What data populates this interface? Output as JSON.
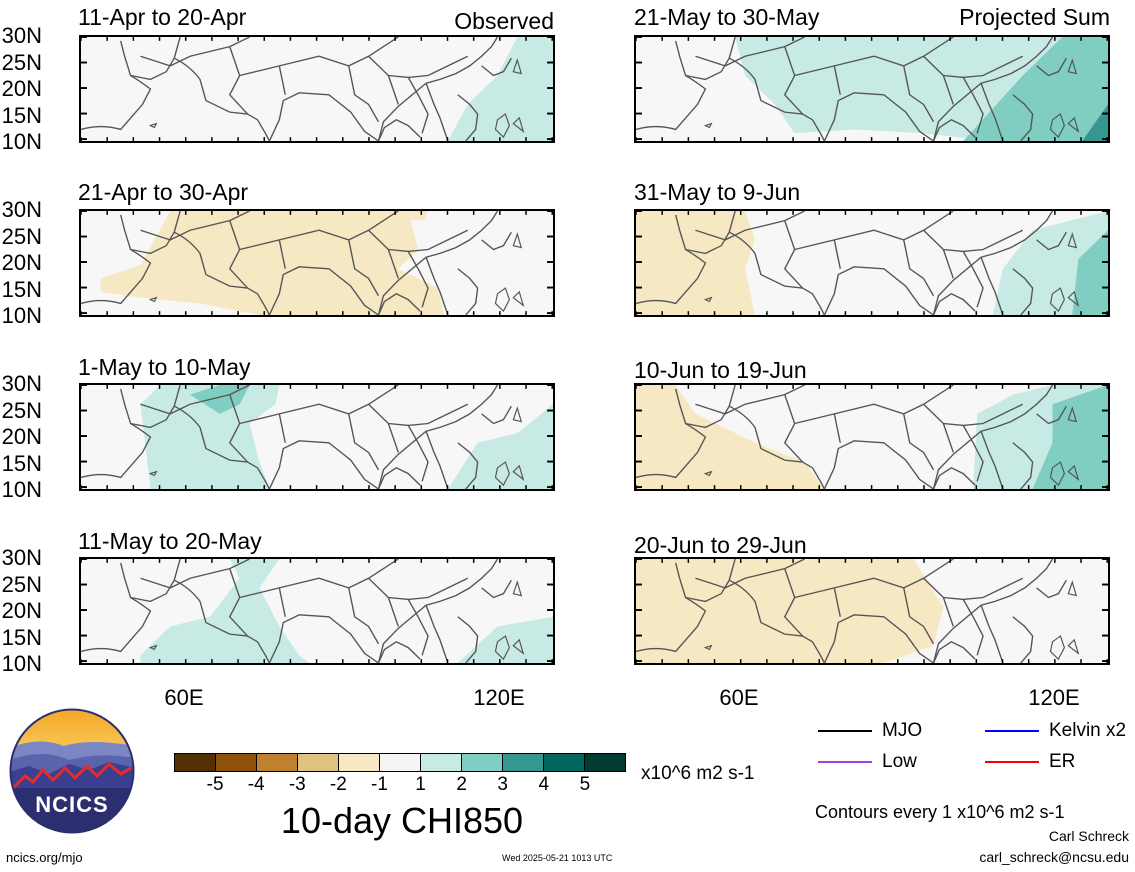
{
  "header": {
    "observed_label": "Observed",
    "projected_label": "Projected Sum"
  },
  "panels_left": [
    {
      "title": "11-Apr to 20-Apr"
    },
    {
      "title": "21-Apr to 30-Apr"
    },
    {
      "title": "1-May to 10-May"
    },
    {
      "title": "11-May to 20-May"
    }
  ],
  "panels_right": [
    {
      "title": "21-May to 30-May"
    },
    {
      "title": "31-May to 9-Jun"
    },
    {
      "title": "10-Jun to 19-Jun"
    },
    {
      "title": "20-Jun to 29-Jun"
    }
  ],
  "lat_labels": [
    "30N",
    "25N",
    "20N",
    "15N",
    "10N"
  ],
  "lon_labels": [
    "60E",
    "120E"
  ],
  "colorbar": {
    "colors": [
      "#543005",
      "#8c510a",
      "#bf812d",
      "#dfc27d",
      "#f6e8c3",
      "#f5f5f5",
      "#c7eae5",
      "#80cdc1",
      "#35978f",
      "#01665e",
      "#003c30"
    ],
    "ticks": [
      "-5",
      "-4",
      "-3",
      "-2",
      "-1",
      "1",
      "2",
      "3",
      "4",
      "5"
    ],
    "unit": "x10^6 m2 s-1",
    "title": "10-day CHI850"
  },
  "legend": {
    "mjo": {
      "label": "MJO",
      "color": "#000000"
    },
    "kelvin": {
      "label": "Kelvin x2",
      "color": "#0000ff"
    },
    "low": {
      "label": "Low",
      "color": "#a040e0"
    },
    "er": {
      "label": "ER",
      "color": "#ff0000"
    }
  },
  "contours_note": "Contours every 1 x10^6 m2 s-1",
  "author": "Carl Schreck",
  "email": "carl_schreck@ncsu.edu",
  "website": "ncics.org/mjo",
  "timestamp": "Wed 2025-05-21 1013 UTC",
  "logo_text": "NCICS"
}
